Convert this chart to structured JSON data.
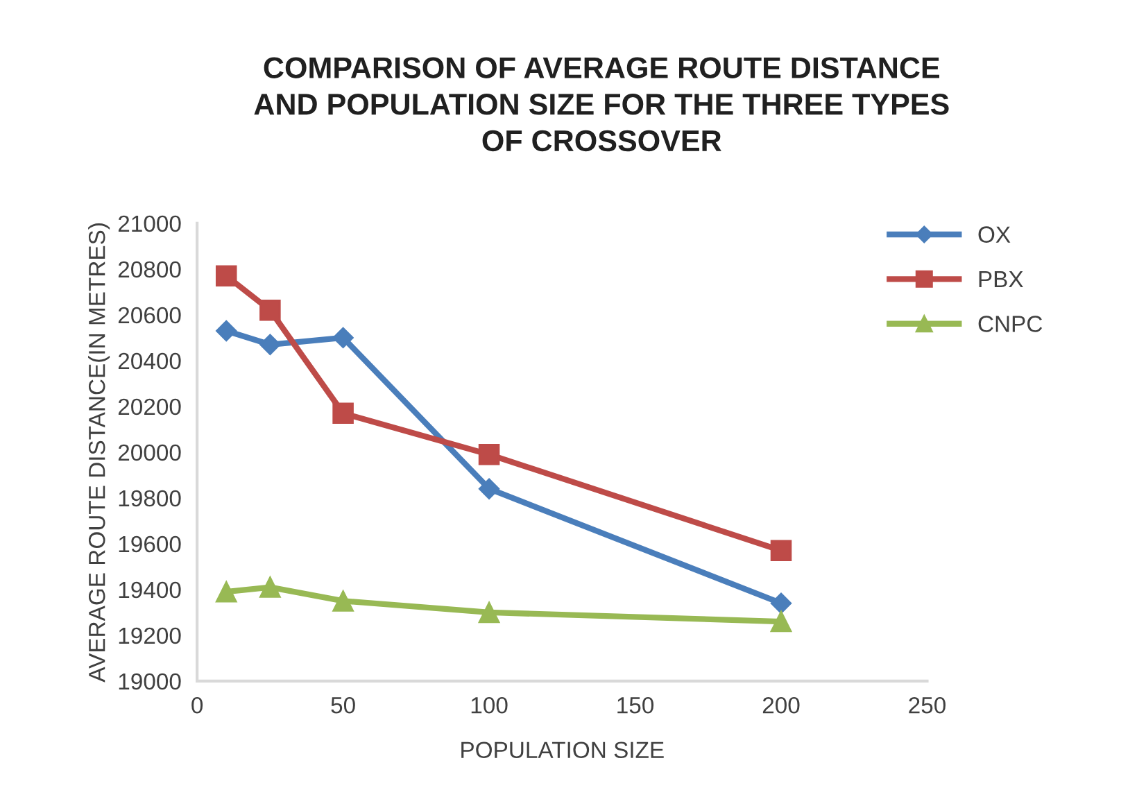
{
  "chart_data": {
    "type": "line",
    "title": "COMPARISON OF AVERAGE ROUTE DISTANCE\nAND POPULATION SIZE FOR THE THREE TYPES\nOF CROSSOVER",
    "xlabel": "POPULATION SIZE",
    "ylabel": "AVERAGE ROUTE DISTANCE(IN METRES)",
    "x": [
      10,
      25,
      50,
      100,
      200
    ],
    "series": [
      {
        "name": "OX",
        "color": "#4a7ebb",
        "marker": "diamond",
        "values": [
          20530,
          20470,
          20500,
          19840,
          19340
        ]
      },
      {
        "name": "PBX",
        "color": "#be4b48",
        "marker": "square",
        "values": [
          20770,
          20620,
          20170,
          19990,
          19570
        ]
      },
      {
        "name": "CNPC",
        "color": "#98b954",
        "marker": "triangle",
        "values": [
          19390,
          19410,
          19350,
          19300,
          19260
        ]
      }
    ],
    "xlim": [
      0,
      250
    ],
    "xticks": [
      0,
      50,
      100,
      150,
      200,
      250
    ],
    "ylim": [
      19000,
      21000
    ],
    "yticks": [
      19000,
      19200,
      19400,
      19600,
      19800,
      20000,
      20200,
      20400,
      20600,
      20800,
      21000
    ],
    "grid": false,
    "legend": "top right",
    "line_style": "solid"
  }
}
